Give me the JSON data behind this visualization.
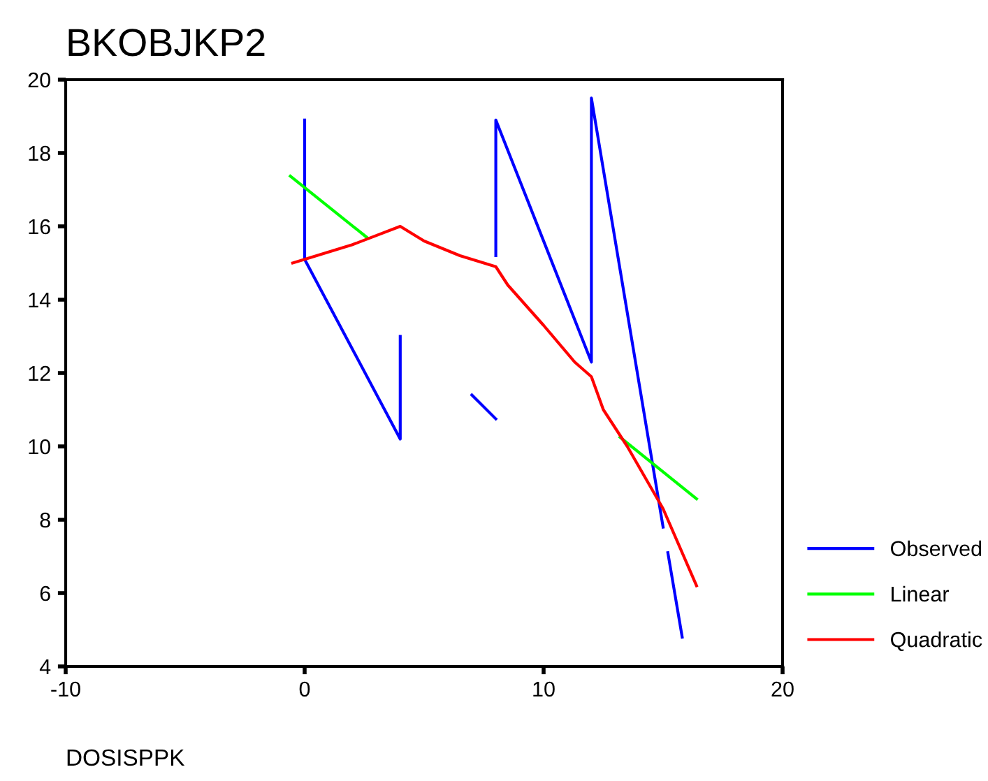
{
  "chart_data": {
    "type": "line",
    "title": "BKOBJKP2",
    "xlabel": "DOSISPPK",
    "xlim": [
      -10,
      20
    ],
    "xticks": [
      -10,
      0,
      10,
      20
    ],
    "ylim": [
      4,
      20
    ],
    "yticks": [
      4,
      6,
      8,
      10,
      12,
      14,
      16,
      18,
      20
    ],
    "grid": false,
    "legend": "right",
    "marker": "none",
    "line_style": "solid",
    "series": [
      {
        "name": "Observed",
        "color": "#0000ff",
        "x": [
          0,
          0,
          4,
          4,
          null,
          7,
          8,
          null,
          8,
          8,
          12,
          12,
          15,
          null,
          15.2,
          15.8
        ],
        "values": [
          18.9,
          15.1,
          10.2,
          13.0,
          null,
          11.4,
          10.75,
          null,
          15.2,
          18.9,
          12.3,
          19.5,
          7.8,
          null,
          7.1,
          4.8
        ]
      },
      {
        "name": "Linear",
        "color": "#00ff00",
        "x": [
          -0.6,
          2.6,
          null,
          13.2,
          16.4
        ],
        "values": [
          17.37,
          15.7,
          null,
          10.25,
          8.57
        ]
      },
      {
        "name": "Quadratic",
        "color": "#ff0000",
        "x": [
          -0.5,
          0,
          2,
          3,
          4,
          5,
          6.5,
          8,
          8.5,
          10,
          11.3,
          12,
          12.5,
          13.5,
          15,
          16.4
        ],
        "values": [
          15.0,
          15.1,
          15.5,
          15.75,
          16.0,
          15.6,
          15.2,
          14.9,
          14.4,
          13.3,
          12.3,
          11.9,
          11.0,
          10.0,
          8.3,
          6.2
        ]
      }
    ]
  }
}
